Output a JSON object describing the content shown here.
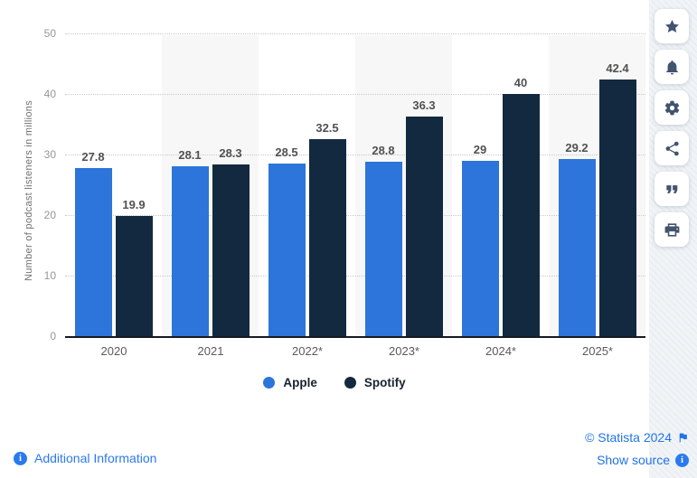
{
  "chart_data": {
    "type": "bar",
    "title": "",
    "ylabel": "Number of podcast listeners in millions",
    "xlabel": "",
    "ylim": [
      0,
      50
    ],
    "yticks": [
      0,
      10,
      20,
      30,
      40,
      50
    ],
    "grid": "horizontal-dotted",
    "legend_position": "bottom",
    "band_color": "#f7f7f8",
    "categories": [
      "2020",
      "2021",
      "2022*",
      "2023*",
      "2024*",
      "2025*"
    ],
    "series": [
      {
        "name": "Apple",
        "color": "#2d75da",
        "values": [
          27.8,
          28.1,
          28.5,
          28.8,
          29,
          29.2
        ]
      },
      {
        "name": "Spotify",
        "color": "#13293f",
        "values": [
          19.9,
          28.3,
          32.5,
          36.3,
          40,
          42.4
        ]
      }
    ]
  },
  "sidebar": {
    "buttons": [
      {
        "name": "favorite",
        "icon": "star-icon"
      },
      {
        "name": "notifications",
        "icon": "bell-icon"
      },
      {
        "name": "settings",
        "icon": "gear-icon"
      },
      {
        "name": "share",
        "icon": "share-icon"
      },
      {
        "name": "cite",
        "icon": "quote-icon"
      },
      {
        "name": "print",
        "icon": "printer-icon"
      }
    ]
  },
  "footer": {
    "additional_information": "Additional Information",
    "copyright": "© Statista 2024",
    "show_source": "Show source"
  },
  "colors": {
    "apple": "#2d75da",
    "spotify": "#13293f",
    "link_blue": "#2173e8",
    "rail_icon": "#41536f"
  }
}
